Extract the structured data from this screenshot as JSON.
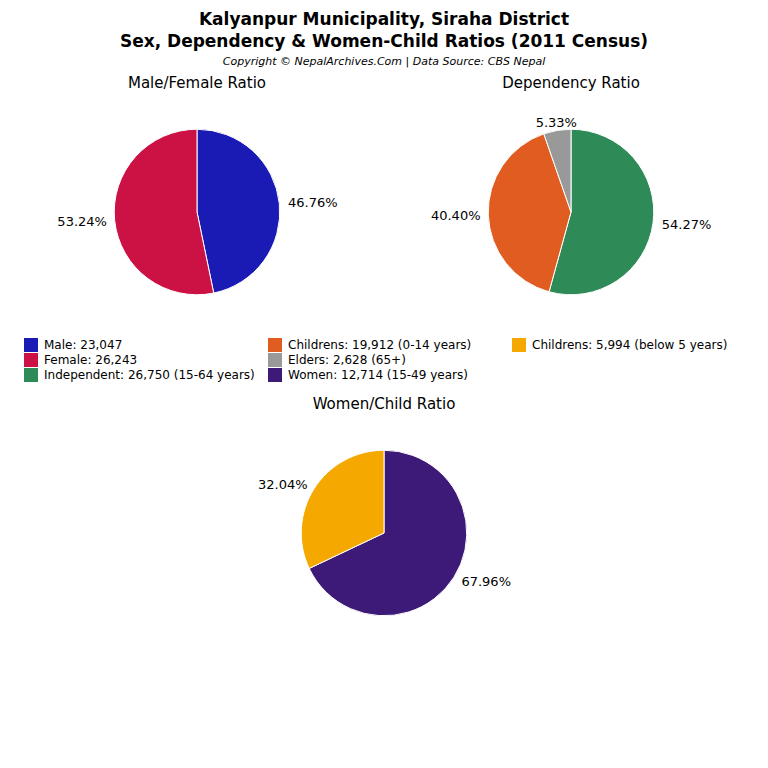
{
  "title": "Kalyanpur Municipality, Siraha District",
  "subtitle": "Sex, Dependency & Women-Child Ratios (2011 Census)",
  "annotations": [
    "Copyright © NepalArchives.Com | Data Source: CBS Nepal"
  ],
  "legend": "center",
  "chart_data": [
    {
      "type": "pie",
      "title": "Male/Female Ratio",
      "categories": [
        "Male: 23,047",
        "Female: 26,243"
      ],
      "values": [
        46.76,
        53.24
      ],
      "value_labels": [
        "46.76%",
        "53.24%"
      ],
      "colors": [
        "#1a1ab5",
        "#cc1144"
      ],
      "data_labels": true
    },
    {
      "type": "pie",
      "title": "Dependency Ratio",
      "categories": [
        "Independent: 26,750 (15-64 years)",
        "Childrens: 19,912 (0-14 years)",
        "Elders: 2,628 (65+)"
      ],
      "values": [
        54.27,
        40.4,
        5.33
      ],
      "value_labels": [
        "54.27%",
        "40.40%",
        "5.33%"
      ],
      "colors": [
        "#2e8b57",
        "#e05c20",
        "#999999"
      ],
      "data_labels": true
    },
    {
      "type": "pie",
      "title": "Women/Child Ratio",
      "categories": [
        "Women: 12,714 (15-49 years)",
        "Childrens: 5,994 (below 5 years)"
      ],
      "values": [
        67.96,
        32.04
      ],
      "value_labels": [
        "67.96%",
        "32.04%"
      ],
      "colors": [
        "#3d1a78",
        "#f5a800"
      ],
      "data_labels": true
    }
  ]
}
